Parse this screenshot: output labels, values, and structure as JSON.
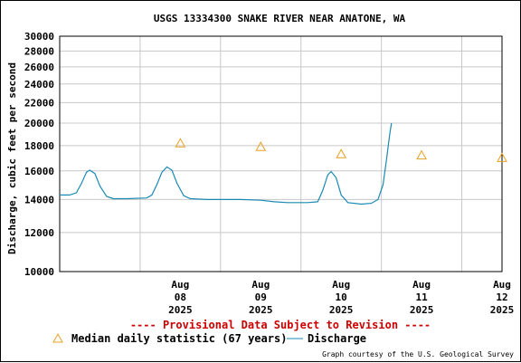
{
  "chart_data": {
    "type": "line",
    "title": "USGS 13334300 SNAKE RIVER NEAR ANATONE, WA",
    "ylabel": "Discharge, cubic feet per second",
    "xlabel": "",
    "y_scale": "log",
    "ylim": [
      10000,
      30000
    ],
    "y_ticks": [
      10000,
      12000,
      14000,
      16000,
      18000,
      20000,
      22000,
      24000,
      26000,
      28000,
      30000
    ],
    "y_tick_labels": [
      "10000",
      "12000",
      "14000",
      "16000",
      "18000",
      "20000",
      "22000",
      "24000",
      "26000",
      "28000",
      "30000"
    ],
    "xlim": [
      "2025-08-07 00:00",
      "2025-08-12 12:00"
    ],
    "x_ticks": [
      {
        "x": "2025-08-08 12:00",
        "month": "Aug",
        "day": "08",
        "year": "2025"
      },
      {
        "x": "2025-08-09 12:00",
        "month": "Aug",
        "day": "09",
        "year": "2025"
      },
      {
        "x": "2025-08-10 12:00",
        "month": "Aug",
        "day": "10",
        "year": "2025"
      },
      {
        "x": "2025-08-11 12:00",
        "month": "Aug",
        "day": "11",
        "year": "2025"
      },
      {
        "x": "2025-08-12 12:00",
        "month": "Aug",
        "day": "12",
        "year": "2025"
      }
    ],
    "grid": true,
    "series": [
      {
        "name": "Discharge",
        "color": "#1a8ab4",
        "points": [
          [
            "2025-08-07 00:00",
            14300
          ],
          [
            "2025-08-07 03:00",
            14300
          ],
          [
            "2025-08-07 05:00",
            14450
          ],
          [
            "2025-08-07 06:30",
            15100
          ],
          [
            "2025-08-07 08:00",
            15900
          ],
          [
            "2025-08-07 09:00",
            16050
          ],
          [
            "2025-08-07 10:30",
            15800
          ],
          [
            "2025-08-07 12:00",
            14900
          ],
          [
            "2025-08-07 14:00",
            14200
          ],
          [
            "2025-08-07 16:00",
            14050
          ],
          [
            "2025-08-07 20:00",
            14050
          ],
          [
            "2025-08-08 02:00",
            14100
          ],
          [
            "2025-08-08 03:30",
            14300
          ],
          [
            "2025-08-08 05:00",
            15000
          ],
          [
            "2025-08-08 06:30",
            15900
          ],
          [
            "2025-08-08 08:00",
            16300
          ],
          [
            "2025-08-08 09:30",
            16050
          ],
          [
            "2025-08-08 11:00",
            15100
          ],
          [
            "2025-08-08 13:00",
            14250
          ],
          [
            "2025-08-08 15:00",
            14050
          ],
          [
            "2025-08-08 20:00",
            14000
          ],
          [
            "2025-08-09 06:00",
            14000
          ],
          [
            "2025-08-09 12:00",
            13950
          ],
          [
            "2025-08-09 16:00",
            13850
          ],
          [
            "2025-08-09 20:00",
            13800
          ],
          [
            "2025-08-10 02:00",
            13800
          ],
          [
            "2025-08-10 05:00",
            13850
          ],
          [
            "2025-08-10 06:30",
            14600
          ],
          [
            "2025-08-10 08:00",
            15700
          ],
          [
            "2025-08-10 09:00",
            15950
          ],
          [
            "2025-08-10 10:30",
            15500
          ],
          [
            "2025-08-10 12:00",
            14300
          ],
          [
            "2025-08-10 14:00",
            13800
          ],
          [
            "2025-08-10 18:00",
            13700
          ],
          [
            "2025-08-10 21:00",
            13750
          ],
          [
            "2025-08-10 23:00",
            14000
          ],
          [
            "2025-08-11 00:30",
            15000
          ],
          [
            "2025-08-11 01:30",
            16800
          ],
          [
            "2025-08-11 02:30",
            19000
          ],
          [
            "2025-08-11 03:00",
            20000
          ]
        ]
      },
      {
        "name": "Median daily statistic (67 years)",
        "color": "#e8a020",
        "marker": "triangle",
        "points": [
          [
            "2025-08-08 12:00",
            18200
          ],
          [
            "2025-08-09 12:00",
            17900
          ],
          [
            "2025-08-10 12:00",
            17300
          ],
          [
            "2025-08-11 12:00",
            17200
          ],
          [
            "2025-08-12 12:00",
            17000
          ]
        ]
      }
    ],
    "annotation": "---- Provisional Data Subject to Revision ----",
    "annotation_color": "#cc0000",
    "legend": {
      "placement": "bottom-left",
      "items": [
        {
          "label": "Median daily statistic (67 years)",
          "symbol": "triangle"
        },
        {
          "label": "Discharge",
          "symbol": "line"
        }
      ]
    },
    "credit": "Graph courtesy of the U.S. Geological Survey"
  }
}
